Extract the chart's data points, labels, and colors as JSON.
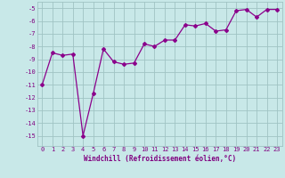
{
  "x": [
    0,
    1,
    2,
    3,
    4,
    5,
    6,
    7,
    8,
    9,
    10,
    11,
    12,
    13,
    14,
    15,
    16,
    17,
    18,
    19,
    20,
    21,
    22,
    23
  ],
  "y": [
    -11,
    -8.5,
    -8.7,
    -8.6,
    -15,
    -11.7,
    -8.2,
    -9.2,
    -9.4,
    -9.3,
    -7.8,
    -8.0,
    -7.5,
    -7.5,
    -6.3,
    -6.4,
    -6.2,
    -6.8,
    -6.7,
    -5.2,
    -5.1,
    -5.7,
    -5.1,
    -5.1
  ],
  "xlabel": "Windchill (Refroidissement éolien,°C)",
  "xlim": [
    -0.5,
    23.5
  ],
  "ylim": [
    -15.8,
    -4.5
  ],
  "yticks": [
    -5,
    -6,
    -7,
    -8,
    -9,
    -10,
    -11,
    -12,
    -13,
    -14,
    -15
  ],
  "xticks": [
    0,
    1,
    2,
    3,
    4,
    5,
    6,
    7,
    8,
    9,
    10,
    11,
    12,
    13,
    14,
    15,
    16,
    17,
    18,
    19,
    20,
    21,
    22,
    23
  ],
  "line_color": "#8B008B",
  "marker": "D",
  "marker_size": 2.0,
  "bg_color": "#c8e8e8",
  "grid_color": "#a0c4c4",
  "font_color": "#800080",
  "font_family": "monospace",
  "tick_fontsize": 5.0,
  "xlabel_fontsize": 5.5
}
